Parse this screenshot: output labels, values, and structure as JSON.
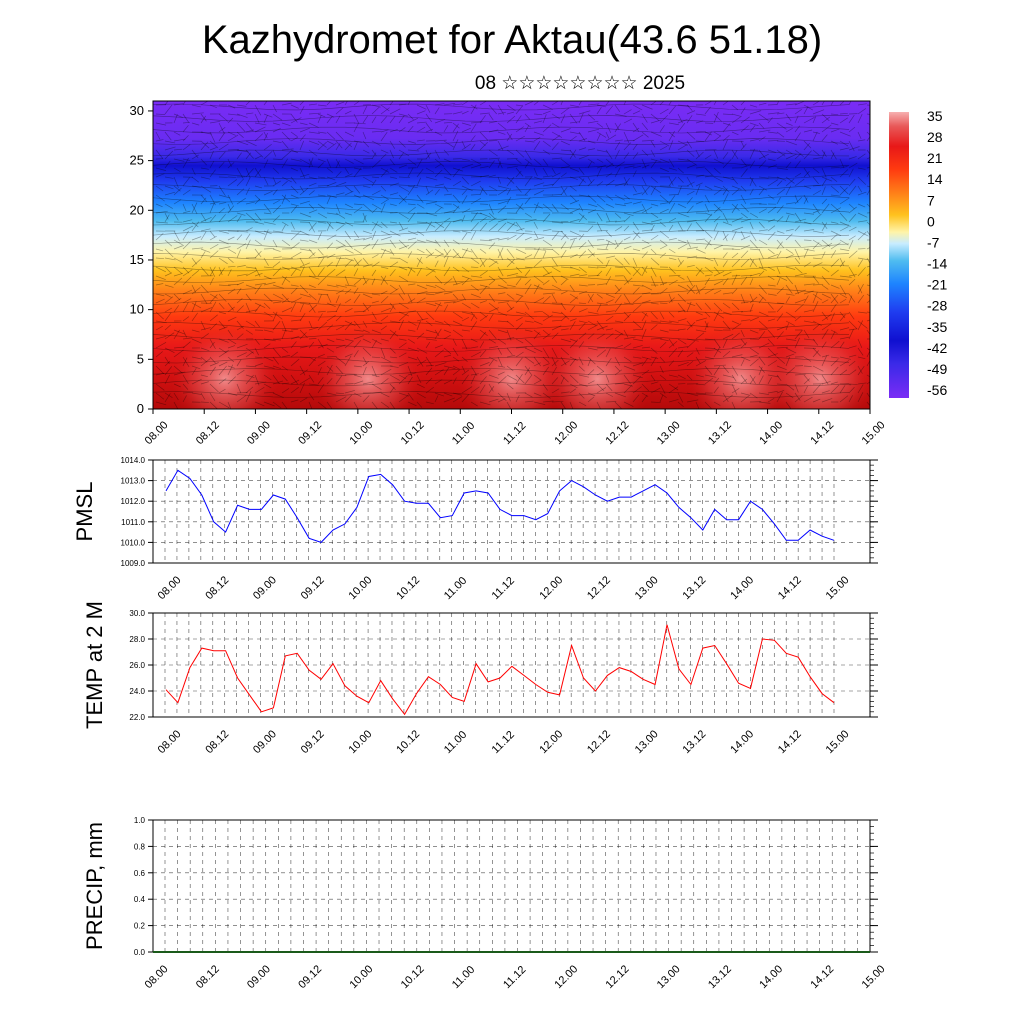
{
  "title": "Kazhydromet for Aktau(43.6 51.18)",
  "subtitle": "08 ☆☆☆☆☆☆☆☆ 2025",
  "time_labels": [
    "08.00",
    "08.12",
    "09.00",
    "09.12",
    "10.00",
    "10.12",
    "11.00",
    "11.12",
    "12.00",
    "12.12",
    "13.00",
    "13.12",
    "14.00",
    "14.12",
    "15.00"
  ],
  "chart_data": [
    {
      "type": "heatmap",
      "name": "cross-section",
      "y_ticks": [
        0,
        5,
        10,
        15,
        20,
        25,
        30
      ],
      "ylim": [
        0,
        31
      ],
      "colorbar": {
        "labels": [
          "35",
          "28",
          "21",
          "14",
          "7",
          "0",
          "-7",
          "-14",
          "-21",
          "-28",
          "-35",
          "-42",
          "-49",
          "-56"
        ]
      }
    },
    {
      "type": "line",
      "ylabel": "PMSL",
      "ylim": [
        1009.0,
        1014.0
      ],
      "y_ticks": [
        "1009.0",
        "1010.0",
        "1011.0",
        "1012.0",
        "1013.0",
        "1014.0"
      ],
      "color": "#0000ff",
      "x_start": 0,
      "x_step": 3,
      "values": [
        1012.5,
        1013.5,
        1013.1,
        1012.3,
        1011.0,
        1010.5,
        1011.8,
        1011.6,
        1011.6,
        1012.3,
        1012.1,
        1011.2,
        1010.2,
        1010.0,
        1010.6,
        1010.9,
        1011.7,
        1013.2,
        1013.3,
        1012.8,
        1012.0,
        1011.9,
        1011.9,
        1011.2,
        1011.3,
        1012.4,
        1012.5,
        1012.4,
        1011.6,
        1011.3,
        1011.3,
        1011.1,
        1011.4,
        1012.5,
        1013.0,
        1012.7,
        1012.3,
        1012.0,
        1012.2,
        1012.2,
        1012.5,
        1012.8,
        1012.4,
        1011.7,
        1011.2,
        1010.6,
        1011.6,
        1011.1,
        1011.1,
        1012.0,
        1011.6,
        1010.9,
        1010.1,
        1010.1,
        1010.6,
        1010.3,
        1010.1
      ]
    },
    {
      "type": "line",
      "ylabel": "TEMP at 2 M",
      "ylim": [
        22.0,
        30.0
      ],
      "y_ticks": [
        "22.0",
        "24.0",
        "26.0",
        "28.0",
        "30.0"
      ],
      "color": "#ff0000",
      "x_start": 0,
      "x_step": 3,
      "values": [
        24.1,
        23.1,
        25.8,
        27.3,
        27.1,
        27.1,
        25.0,
        23.7,
        22.4,
        22.7,
        26.7,
        26.9,
        25.6,
        24.9,
        26.1,
        24.4,
        23.6,
        23.1,
        24.8,
        23.4,
        22.2,
        23.8,
        25.1,
        24.5,
        23.5,
        23.2,
        26.1,
        24.7,
        25.0,
        25.9,
        25.2,
        24.5,
        23.9,
        23.7,
        27.5,
        25.0,
        24.0,
        25.2,
        25.8,
        25.5,
        24.9,
        24.5,
        29.1,
        25.7,
        24.5,
        27.3,
        27.5,
        26.1,
        24.6,
        24.2,
        28.0,
        27.9,
        26.9,
        26.6,
        25.1,
        23.8,
        23.1
      ]
    },
    {
      "type": "bar",
      "ylabel": "PRECIP, mm",
      "ylim": [
        0.0,
        1.0
      ],
      "y_ticks": [
        "0.0",
        "0.2",
        "0.4",
        "0.6",
        "0.8",
        "1.0"
      ],
      "x_start": 0,
      "x_step": 3,
      "values": []
    }
  ]
}
